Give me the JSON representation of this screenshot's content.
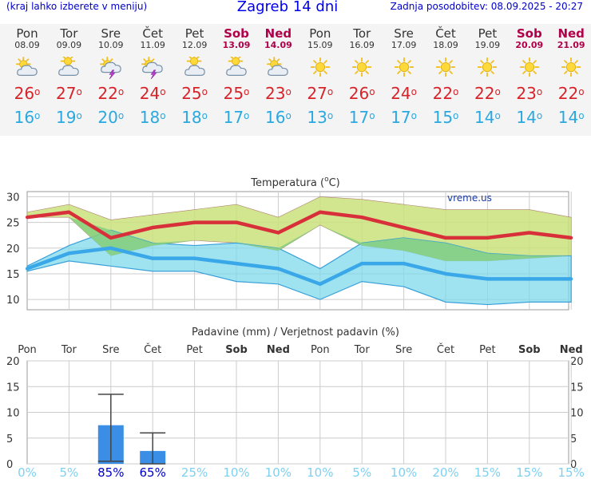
{
  "header": {
    "left_note": "(kraj lahko izberete v meniju)",
    "title": "Zagreb 14 dni",
    "updated": "Zadnja posodobitev: 08.09.2025 - 20:27"
  },
  "days": [
    {
      "name": "Pon",
      "date": "08.09",
      "weekend": false,
      "icon": "partly-sunny-icon",
      "max": "26",
      "min": "16"
    },
    {
      "name": "Tor",
      "date": "09.09",
      "weekend": false,
      "icon": "cloudy-icon",
      "max": "27",
      "min": "19"
    },
    {
      "name": "Sre",
      "date": "10.09",
      "weekend": false,
      "icon": "sun-thunderstorm-icon",
      "max": "22",
      "min": "20"
    },
    {
      "name": "Čet",
      "date": "11.09",
      "weekend": false,
      "icon": "sun-thunderstorm-icon",
      "max": "24",
      "min": "18"
    },
    {
      "name": "Pet",
      "date": "12.09",
      "weekend": false,
      "icon": "cloudy-icon",
      "max": "25",
      "min": "18"
    },
    {
      "name": "Sob",
      "date": "13.09",
      "weekend": true,
      "icon": "cloudy-icon",
      "max": "25",
      "min": "17"
    },
    {
      "name": "Ned",
      "date": "14.09",
      "weekend": true,
      "icon": "partly-sunny-icon",
      "max": "23",
      "min": "16"
    },
    {
      "name": "Pon",
      "date": "15.09",
      "weekend": false,
      "icon": "sunny-icon",
      "max": "27",
      "min": "13"
    },
    {
      "name": "Tor",
      "date": "16.09",
      "weekend": false,
      "icon": "sunny-icon",
      "max": "26",
      "min": "17"
    },
    {
      "name": "Sre",
      "date": "17.09",
      "weekend": false,
      "icon": "sunny-icon",
      "max": "24",
      "min": "17"
    },
    {
      "name": "Čet",
      "date": "18.09",
      "weekend": false,
      "icon": "sunny-icon",
      "max": "22",
      "min": "15"
    },
    {
      "name": "Pet",
      "date": "19.09",
      "weekend": false,
      "icon": "sunny-icon",
      "max": "22",
      "min": "14"
    },
    {
      "name": "Sob",
      "date": "20.09",
      "weekend": true,
      "icon": "sunny-icon",
      "max": "23",
      "min": "14"
    },
    {
      "name": "Ned",
      "date": "21.09",
      "weekend": true,
      "icon": "sunny-icon",
      "max": "22",
      "min": "14"
    }
  ],
  "colors": {
    "max_line": "#d8303a",
    "min_line": "#3aa8e8",
    "max_band": "#c9e27a",
    "min_band": "#7fd9ec",
    "overlap_band": "#86cf7e",
    "bar": "#3a8ee6",
    "weekend_text": "#b0004a",
    "prob_text": "#7fd0f0",
    "prob_highlight": "#0000cc"
  },
  "chart_data": [
    {
      "type": "line",
      "title": "Temperatura (°C)",
      "title_prefix": "Temperatura (",
      "title_degree": "o",
      "title_suffix": "C)",
      "watermark": "vreme.us",
      "categories": [
        "Pon",
        "Tor",
        "Sre",
        "Čet",
        "Pet",
        "Sob",
        "Ned",
        "Pon",
        "Tor",
        "Sre",
        "Čet",
        "Pet",
        "Sob",
        "Ned"
      ],
      "ylim": [
        8,
        31
      ],
      "yticks": [
        10,
        15,
        20,
        25,
        30
      ],
      "grid": true,
      "series": [
        {
          "key": "max",
          "values": [
            26,
            27,
            22,
            24,
            25,
            25,
            23,
            27,
            26,
            24,
            22,
            22,
            23,
            22
          ]
        },
        {
          "key": "min",
          "values": [
            16,
            19,
            20,
            18,
            18,
            17,
            16,
            13,
            17,
            17,
            15,
            14,
            14,
            14
          ]
        },
        {
          "key": "max_upper",
          "values": [
            27,
            28.5,
            25.5,
            26.5,
            27.5,
            28.5,
            26,
            30,
            29.5,
            28.5,
            27.5,
            27.5,
            27.5,
            26
          ]
        },
        {
          "key": "max_lower",
          "values": [
            26,
            26,
            18.5,
            20.5,
            21.5,
            21,
            19.5,
            24.5,
            20.5,
            19.5,
            17.5,
            17.5,
            18,
            18.5
          ]
        },
        {
          "key": "min_upper",
          "values": [
            16.5,
            20.5,
            23.5,
            21,
            20.5,
            21,
            20,
            16,
            21,
            22,
            21,
            19,
            18.5,
            18.5
          ]
        },
        {
          "key": "min_lower",
          "values": [
            15.5,
            17.5,
            16.5,
            15.5,
            15.5,
            13.5,
            13,
            10,
            13.5,
            12.5,
            9.5,
            9,
            9.5,
            9.5
          ]
        }
      ]
    },
    {
      "type": "bar",
      "title": "Padavine (mm) / Verjetnost padavin (%)",
      "categories": [
        "Pon",
        "Tor",
        "Sre",
        "Čet",
        "Pet",
        "Sob",
        "Ned",
        "Pon",
        "Tor",
        "Sre",
        "Čet",
        "Pet",
        "Sob",
        "Ned"
      ],
      "ylim": [
        0,
        20
      ],
      "yticks": [
        0,
        5,
        10,
        15,
        20
      ],
      "grid": true,
      "values": [
        0,
        0,
        7.5,
        2.5,
        0,
        0,
        0,
        0,
        0,
        0,
        0,
        0,
        0,
        0
      ],
      "error_high": [
        0,
        0,
        13.5,
        6,
        0,
        0,
        0,
        0,
        0,
        0,
        0,
        0,
        0,
        0
      ],
      "error_low": [
        0,
        0,
        0.5,
        0,
        0,
        0,
        0,
        0,
        0,
        0,
        0,
        0,
        0,
        0
      ],
      "probabilities": [
        "0%",
        "5%",
        "85%",
        "65%",
        "25%",
        "10%",
        "10%",
        "10%",
        "5%",
        "10%",
        "20%",
        "15%",
        "15%",
        "15%"
      ],
      "highlight_probabilities": [
        2,
        3
      ]
    }
  ]
}
